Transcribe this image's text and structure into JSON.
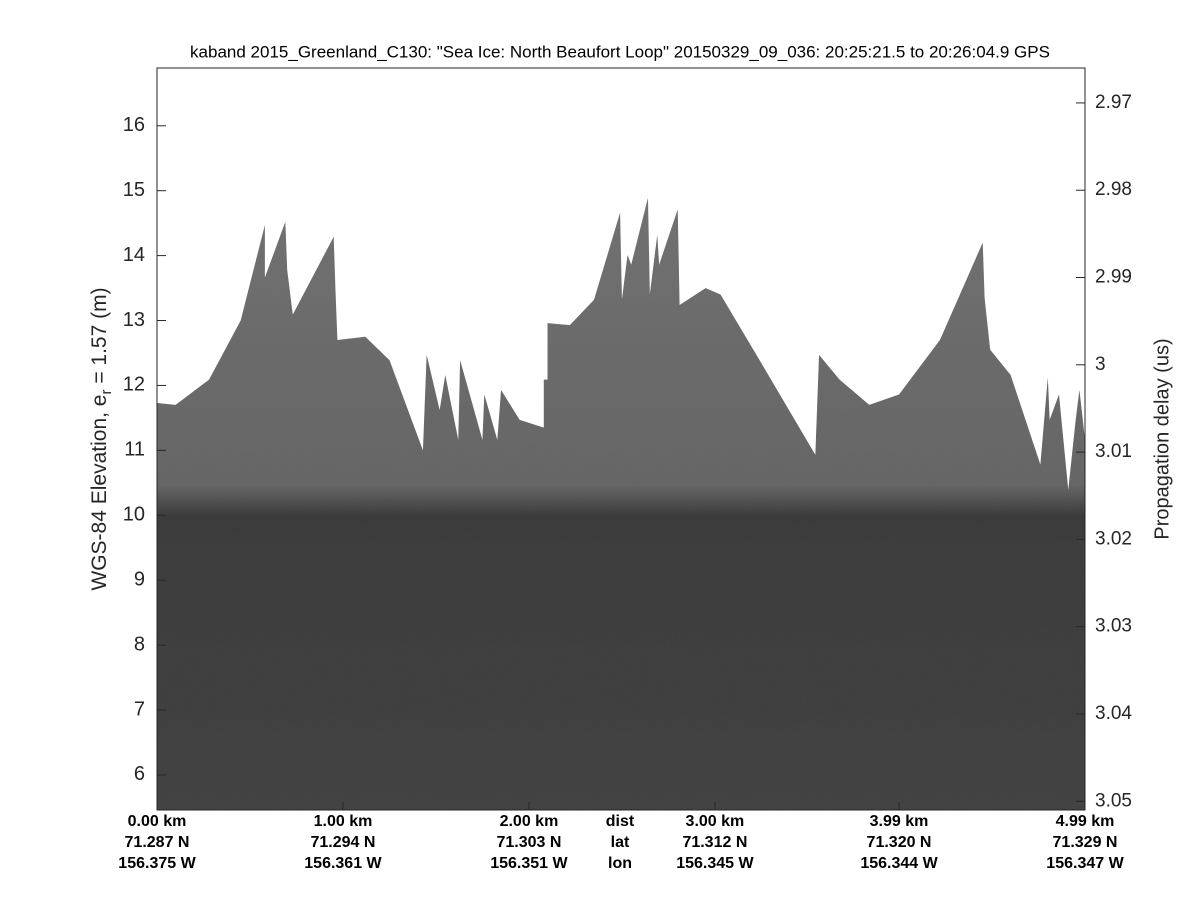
{
  "chart_data": {
    "type": "echogram",
    "title": "kaband 2015_Greenland_C130: \"Sea Ice: North Beaufort Loop\"  20150329_09_036: 20:25:21.5 to 20:26:04.9 GPS",
    "ylabel": {
      "text": "WGS-84 Elevation, e",
      "sub": "r",
      "rest": " = 1.57 (m)"
    },
    "y2label": "Propagation delay (us)",
    "xlim": [
      0,
      4.99
    ],
    "ylim": [
      5.46,
      16.89
    ],
    "y2lim": [
      2.966,
      3.051
    ],
    "y2reverse": true,
    "yticks": [
      6,
      7,
      8,
      9,
      10,
      11,
      12,
      13,
      14,
      15,
      16
    ],
    "y2ticks": [
      2.97,
      2.98,
      2.99,
      3,
      3.01,
      3.02,
      3.03,
      3.04,
      3.05
    ],
    "xticks": [
      {
        "value": 0,
        "label": "0.00 km"
      },
      {
        "value": 1.0,
        "label": "1.00 km"
      },
      {
        "value": 2.0,
        "label": "2.00 km"
      },
      {
        "value": 3.0,
        "label": "3.00 km"
      },
      {
        "value": 3.99,
        "label": "3.99 km"
      },
      {
        "value": 4.99,
        "label": "4.99 km"
      }
    ],
    "lat_labels": [
      "71.287 N",
      "71.294 N",
      "71.303 N",
      "71.312 N",
      "71.320 N",
      "71.329 N"
    ],
    "lon_labels": [
      "156.375 W",
      "156.361 W",
      "156.351 W",
      "156.345 W",
      "156.344 W",
      "156.347 W"
    ],
    "row_labels": [
      "dist",
      "lat",
      "lon"
    ],
    "series": [
      {
        "color": "#6b6b6b",
        "x": [
          0,
          0.1,
          0.28,
          0.45,
          0.58,
          0.58,
          0.69,
          0.7,
          0.73,
          0.95,
          0.96,
          0.97,
          1.12,
          1.25,
          1.43,
          1.45,
          1.52,
          1.55,
          1.62,
          1.63,
          1.75,
          1.76,
          1.83,
          1.85,
          1.95,
          2.08,
          2.08,
          2.1,
          2.1,
          2.22,
          2.35,
          2.49,
          2.5,
          2.53,
          2.55,
          2.64,
          2.65,
          2.69,
          2.7,
          2.8,
          2.81,
          2.95,
          3.03,
          3.24,
          3.54,
          3.56,
          3.67,
          3.83,
          3.99,
          4.21,
          4.44,
          4.45,
          4.48,
          4.59,
          4.75,
          4.79,
          4.8,
          4.85,
          4.9,
          4.94,
          4.96,
          4.99
        ],
        "values": [
          11.73,
          11.7,
          12.09,
          13.0,
          14.47,
          13.66,
          14.52,
          13.78,
          13.09,
          14.29,
          13.44,
          12.7,
          12.75,
          12.39,
          11.0,
          12.47,
          11.62,
          12.16,
          11.16,
          12.39,
          11.16,
          11.86,
          11.16,
          11.93,
          11.47,
          11.35,
          12.09,
          12.09,
          12.96,
          12.93,
          13.32,
          14.66,
          13.32,
          14.01,
          13.86,
          14.89,
          13.4,
          14.32,
          13.86,
          14.71,
          13.24,
          13.5,
          13.4,
          12.39,
          10.93,
          12.47,
          12.09,
          11.7,
          11.86,
          12.7,
          14.2,
          13.35,
          12.55,
          12.16,
          10.78,
          12.12,
          11.47,
          11.86,
          10.39,
          11.47,
          11.93,
          11.16
        ]
      }
    ]
  }
}
